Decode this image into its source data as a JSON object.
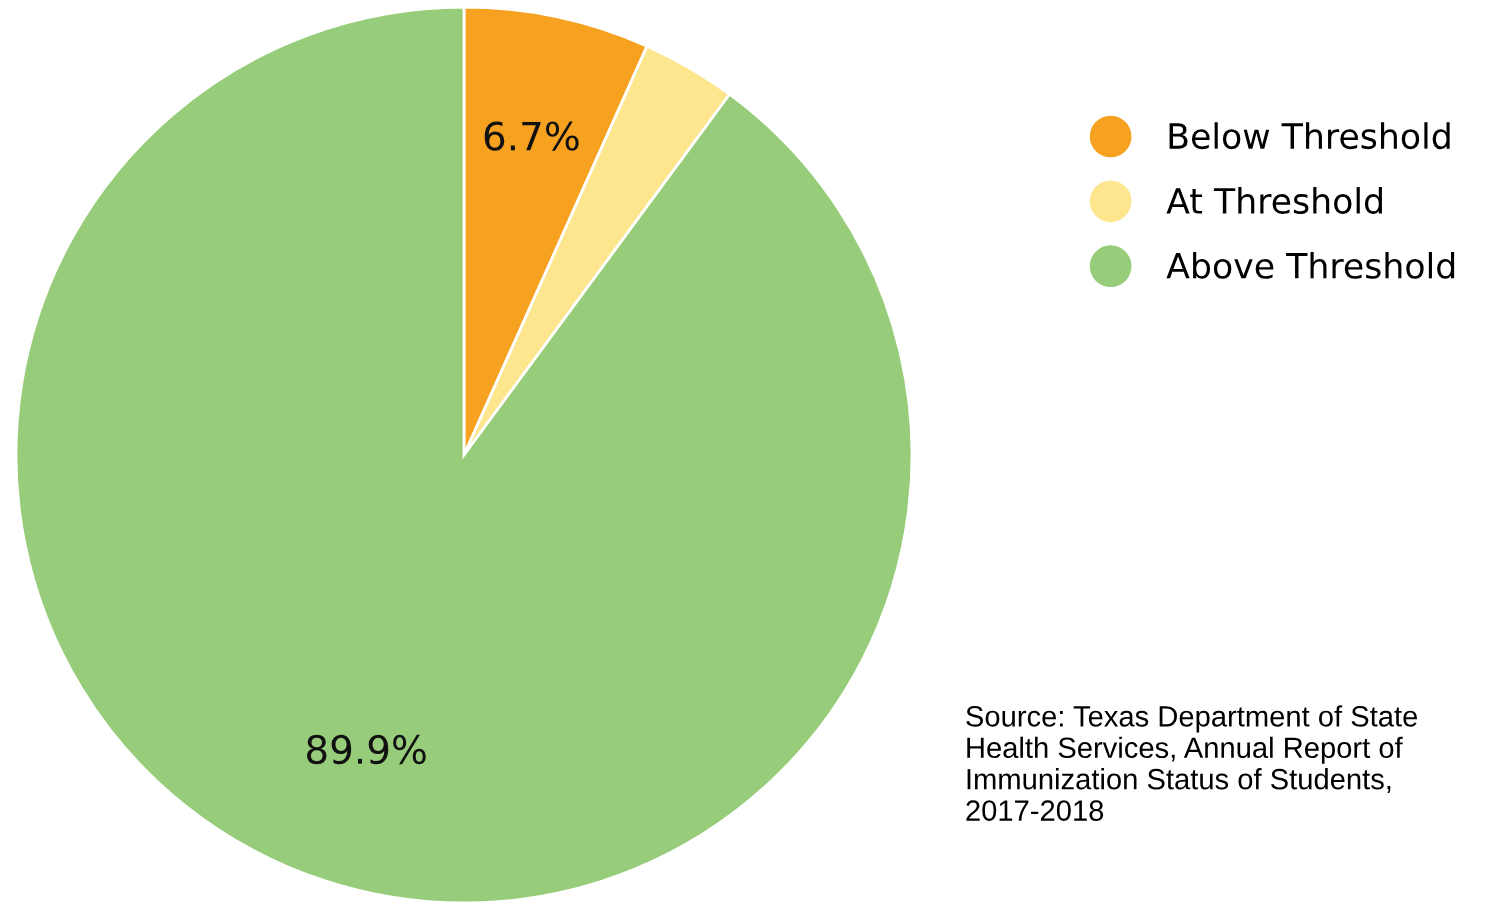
{
  "chart_data": {
    "type": "pie",
    "categories": [
      "Below Threshold",
      "At Threshold",
      "Above Threshold"
    ],
    "values": [
      6.7,
      3.4,
      89.9
    ],
    "colors": [
      "#f6a11f",
      "#fde68e",
      "#97cd7a"
    ],
    "value_labels": [
      "6.7%",
      null,
      "89.9%"
    ],
    "legend": "top right",
    "annotations": [
      "Source: Texas Department of State Health Services, Annual Report of Immunization Status of Students, 2017-2018"
    ]
  }
}
